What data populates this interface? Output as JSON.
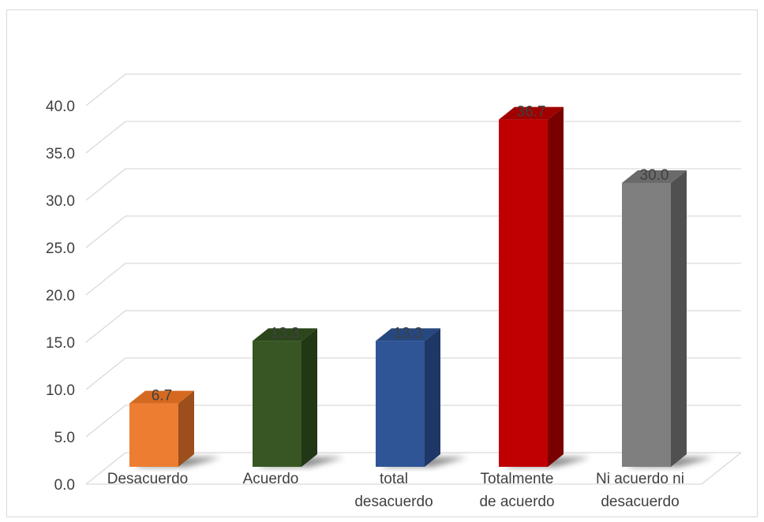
{
  "chart_data": {
    "type": "bar",
    "title": "",
    "xlabel": "",
    "ylabel": "",
    "categories": [
      "Desacuerdo",
      "Acuerdo",
      "total desacuerdo",
      "Totalmente de acuerdo",
      "Ni acuerdo ni desacuerdo"
    ],
    "category_lines": [
      [
        "Desacuerdo"
      ],
      [
        "Acuerdo"
      ],
      [
        "total",
        "desacuerdo"
      ],
      [
        "Totalmente",
        "de acuerdo"
      ],
      [
        "Ni acuerdo ni",
        "desacuerdo"
      ]
    ],
    "values": [
      6.7,
      13.3,
      13.3,
      36.7,
      30.0
    ],
    "data_labels": [
      "6.7",
      "13.3",
      "13.3",
      "36.7",
      "30.0"
    ],
    "ylim": [
      0,
      40
    ],
    "yticks": [
      0,
      5,
      10,
      15,
      20,
      25,
      30,
      35,
      40
    ],
    "ytick_labels": [
      "0.0",
      "5.0",
      "10.0",
      "15.0",
      "20.0",
      "25.0",
      "30.0",
      "35.0",
      "40.0"
    ],
    "grid": true,
    "legend": "none",
    "style": "3d-column",
    "colors": [
      "#ED7D31",
      "#375623",
      "#2F5597",
      "#C00000",
      "#7F7F7F"
    ],
    "side_colors": [
      "#9C4F1C",
      "#223715",
      "#1E3766",
      "#7A0000",
      "#505050"
    ],
    "top_colors": [
      "#D4691F",
      "#2B461B",
      "#26487F",
      "#A00000",
      "#6A6A6A"
    ],
    "gridline_color": "#d9d9d9"
  }
}
